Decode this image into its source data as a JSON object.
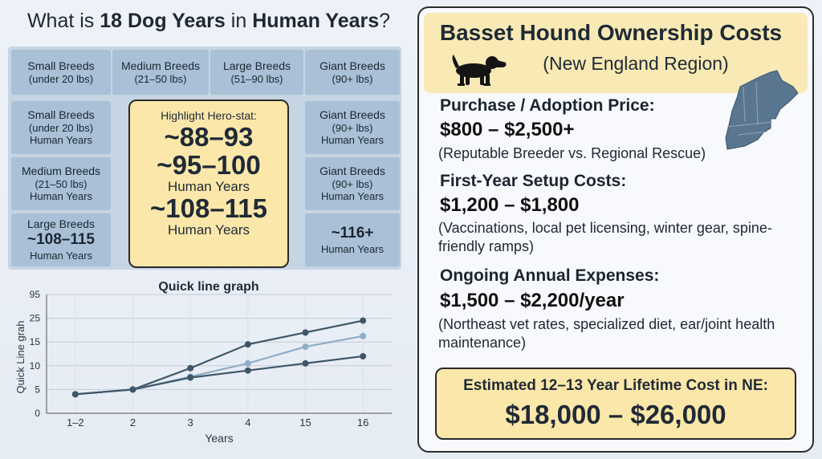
{
  "title": {
    "prefix": "What is ",
    "strong1": "18 Dog Years",
    "mid": " in ",
    "strong2": "Human Years",
    "suffix": "?"
  },
  "grid": {
    "header": [
      {
        "name": "Small Breeds",
        "sub": "(under 20 lbs)"
      },
      {
        "name": "Medium Breeds",
        "sub": "(21–50 lbs)"
      },
      {
        "name": "Large Breeds",
        "sub": "(51–90 lbs)"
      },
      {
        "name": "Giant Breeds",
        "sub": "(90+ lbs)"
      }
    ],
    "left": [
      {
        "name": "Small Breeds",
        "sub": "(under 20 lbs)",
        "ht": "Human Years"
      },
      {
        "name": "Medium Breeds",
        "sub": "(21–50 lbs)",
        "ht": "Human Years"
      },
      {
        "name": "Large Breeds",
        "big": "~108–115",
        "ht": "Human Years"
      }
    ],
    "right": [
      {
        "name": "Giant Breeds",
        "sub": "(90+ lbs)",
        "ht": "Human Years"
      },
      {
        "name": "Giant Breeds",
        "sub": "(90+ lbs)",
        "ht": "Human Years"
      },
      {
        "big": "~116+",
        "ht": "Human Years"
      }
    ],
    "hero": {
      "label": "Highlight Hero-stat:",
      "v1": "~88–93",
      "v2": "~95–100",
      "u2": "Human Years",
      "v3": "~108–115",
      "u3": "Human Years"
    }
  },
  "chart_data": {
    "type": "line",
    "title": "Quick line graph",
    "xlabel": "Years",
    "ylabel": "Quick Line grah",
    "categories": [
      "1–2",
      "2",
      "3",
      "4",
      "15",
      "16"
    ],
    "yticks": [
      "0",
      "5",
      "10",
      "15",
      "25",
      "95"
    ],
    "series": [
      {
        "color": "#3e5668",
        "values": [
          4,
          5,
          9.5,
          14.5,
          19,
          24
        ]
      },
      {
        "color": "#8fadc6",
        "values": [
          4,
          5,
          7.7,
          10.5,
          14,
          17.5
        ]
      },
      {
        "color": "#3e5668",
        "values": [
          4,
          5,
          7.5,
          9,
          10.5,
          12
        ]
      }
    ],
    "grid": true
  },
  "panel": {
    "title": "Basset Hound Ownership Costs",
    "subtitle": "(New England Region)",
    "sections": [
      {
        "h": "Purchase / Adoption Price:",
        "v": "$800 – $2,500+",
        "d": "(Reputable Breeder vs. Regional Rescue)"
      },
      {
        "h": "First-Year Setup Costs:",
        "v": "$1,200 – $1,800",
        "d": "(Vaccinations, local pet licensing, winter gear, spine-friendly ramps)"
      },
      {
        "h": "Ongoing Annual Expenses:",
        "v": "$1,500 – $2,200/year",
        "d": "(Northeast vet rates, specialized diet, ear/joint health maintenance)"
      }
    ],
    "total_label": "Estimated 12–13 Year Lifetime Cost in NE:",
    "total_value": "$18,000 – $26,000"
  },
  "icons": {
    "dog": "basset-hound-icon",
    "map": "new-england-map-icon"
  },
  "colors": {
    "cell": "#a9c0d6",
    "hero": "#fbe7a9",
    "line_dark": "#3e5668",
    "line_light": "#8fadc6"
  }
}
